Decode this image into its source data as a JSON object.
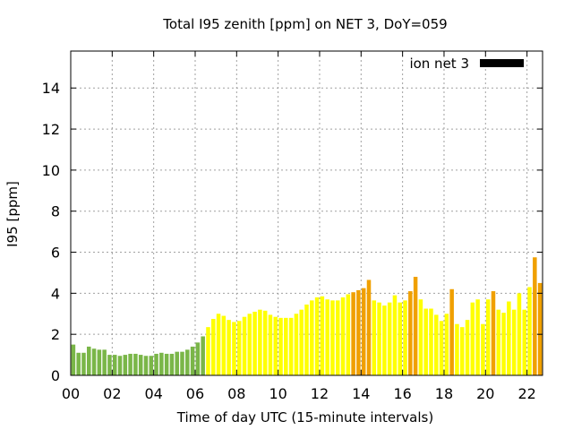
{
  "chart_data": {
    "type": "bar",
    "title": "Total I95 zenith [ppm] on NET 3, DoY=059",
    "xlabel": "Time of day UTC (15-minute intervals)",
    "ylabel": "I95 [ppm]",
    "xlim": [
      0,
      22.75
    ],
    "ylim": [
      0,
      15.8
    ],
    "x_ticks": [
      "00",
      "02",
      "04",
      "06",
      "08",
      "10",
      "12",
      "14",
      "16",
      "18",
      "20",
      "22"
    ],
    "y_ticks": [
      "0",
      "2",
      "4",
      "6",
      "8",
      "10",
      "12",
      "14"
    ],
    "grid": true,
    "legend": {
      "position": "top-right",
      "label": "ion net 3",
      "color": "#000000"
    },
    "interval_hours": 0.25,
    "colors": {
      "green": "#7ab648",
      "yellow": "#ffff00",
      "orange": "#f0a000"
    },
    "series": [
      {
        "values": [
          1.5,
          1.1,
          1.1,
          1.4,
          1.3,
          1.25,
          1.25,
          1.0,
          1.0,
          0.95,
          1.0,
          1.05,
          1.05,
          1.0,
          0.95,
          0.95,
          1.05,
          1.1,
          1.05,
          1.05,
          1.15,
          1.15,
          1.25,
          1.4,
          1.6,
          1.9,
          2.35,
          2.75,
          3.0,
          2.9,
          2.7,
          2.6,
          2.65,
          2.85,
          3.0,
          3.1,
          3.2,
          3.15,
          2.95,
          2.85,
          2.8,
          2.8,
          2.8,
          3.0,
          3.2,
          3.45,
          3.65,
          3.8,
          3.85,
          3.7,
          3.65,
          3.65,
          3.8,
          3.95,
          4.05,
          4.15,
          4.25,
          4.65,
          3.65,
          3.55,
          3.4,
          3.55,
          3.9,
          3.55,
          3.65,
          4.1,
          4.8,
          3.7,
          3.25,
          3.25,
          2.95,
          2.65,
          3.0,
          4.2,
          2.5,
          2.35,
          2.7,
          3.55,
          3.7,
          2.5,
          3.7,
          4.1,
          3.2,
          3.05,
          3.6,
          3.2,
          4.0,
          3.2,
          4.3,
          5.75,
          4.5
        ],
        "colors": [
          "green",
          "green",
          "green",
          "green",
          "green",
          "green",
          "green",
          "green",
          "green",
          "green",
          "green",
          "green",
          "green",
          "green",
          "green",
          "green",
          "green",
          "green",
          "green",
          "green",
          "green",
          "green",
          "green",
          "green",
          "green",
          "green",
          "yellow",
          "yellow",
          "yellow",
          "yellow",
          "yellow",
          "yellow",
          "yellow",
          "yellow",
          "yellow",
          "yellow",
          "yellow",
          "yellow",
          "yellow",
          "yellow",
          "yellow",
          "yellow",
          "yellow",
          "yellow",
          "yellow",
          "yellow",
          "yellow",
          "yellow",
          "yellow",
          "yellow",
          "yellow",
          "yellow",
          "yellow",
          "yellow",
          "orange",
          "orange",
          "orange",
          "orange",
          "yellow",
          "yellow",
          "yellow",
          "yellow",
          "yellow",
          "yellow",
          "yellow",
          "orange",
          "orange",
          "yellow",
          "yellow",
          "yellow",
          "yellow",
          "yellow",
          "yellow",
          "orange",
          "yellow",
          "yellow",
          "yellow",
          "yellow",
          "yellow",
          "yellow",
          "yellow",
          "orange",
          "yellow",
          "yellow",
          "yellow",
          "yellow",
          "yellow",
          "yellow",
          "yellow",
          "orange",
          "orange"
        ]
      }
    ]
  }
}
